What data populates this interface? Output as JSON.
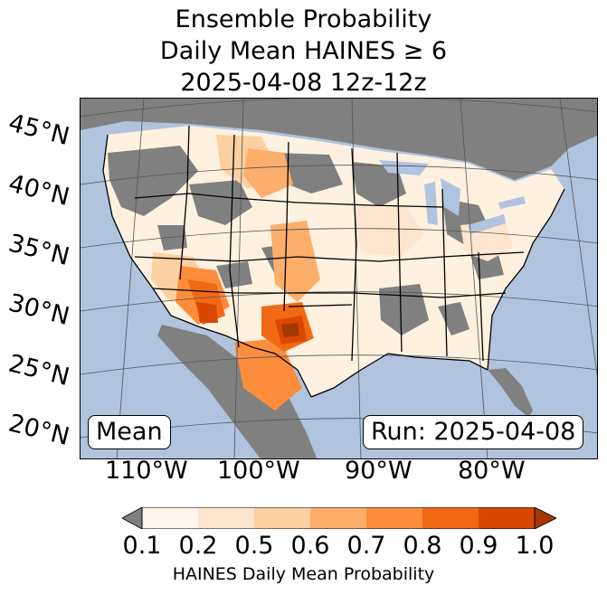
{
  "title": {
    "line1": "Ensemble Probability",
    "line2": "Daily Mean HAINES ≥ 6",
    "line3": "2025-04-08 12z-12z"
  },
  "latitude_labels": [
    "45°N",
    "40°N",
    "35°N",
    "30°N",
    "25°N",
    "20°N"
  ],
  "longitude_labels": [
    "110°W",
    "100°W",
    "90°W",
    "80°W"
  ],
  "annotations": {
    "stat": "Mean",
    "run": "Run: 2025-04-08"
  },
  "colorbar": {
    "label": "HAINES Daily Mean Probability",
    "ticks": [
      "0.1",
      "0.2",
      "0.5",
      "0.6",
      "0.7",
      "0.8",
      "0.9",
      "1.0"
    ],
    "under_color": "#808080",
    "colors": [
      "#fff5eb",
      "#fee6ce",
      "#fdd0a2",
      "#fdae6b",
      "#fd8d3c",
      "#f16913",
      "#d94801",
      "#a63603"
    ]
  },
  "colors": {
    "ocean": "#b0c4de",
    "below_threshold": "#808080",
    "land_low": "#fff5eb"
  }
}
